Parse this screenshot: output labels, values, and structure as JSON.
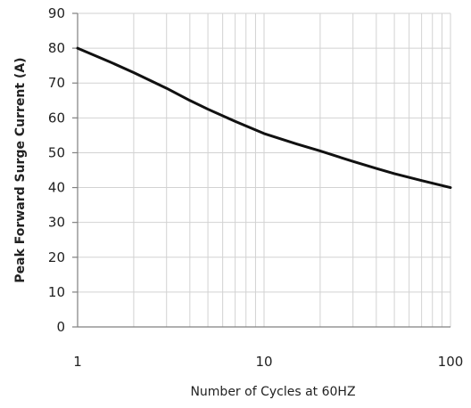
{
  "chart_data": {
    "type": "line",
    "title": "",
    "xlabel": "Number of Cycles at 60HZ",
    "ylabel": "Peak Forward Surge Current (A)",
    "x_scale": "log",
    "xlim": [
      1,
      100
    ],
    "ylim": [
      0,
      90
    ],
    "x_ticks": [
      1,
      10,
      100
    ],
    "x_tick_labels": [
      "1",
      "10",
      "100"
    ],
    "y_ticks": [
      0,
      10,
      20,
      30,
      40,
      50,
      60,
      70,
      80,
      90
    ],
    "y_tick_labels": [
      "0",
      "10",
      "20",
      "30",
      "40",
      "50",
      "60",
      "70",
      "80",
      "90"
    ],
    "grid": true,
    "series": [
      {
        "x": [
          1,
          1.5,
          2,
          3,
          4,
          5,
          7,
          10,
          15,
          20,
          30,
          40,
          50,
          70,
          100
        ],
        "y": [
          80,
          76,
          73,
          68.5,
          65,
          62.5,
          59,
          55.5,
          52.5,
          50.5,
          47.5,
          45.5,
          44,
          42,
          40
        ]
      }
    ]
  },
  "colors": {
    "line": "#111111",
    "grid": "#d2d2d2",
    "axis": "#808080",
    "text": "#222222"
  }
}
